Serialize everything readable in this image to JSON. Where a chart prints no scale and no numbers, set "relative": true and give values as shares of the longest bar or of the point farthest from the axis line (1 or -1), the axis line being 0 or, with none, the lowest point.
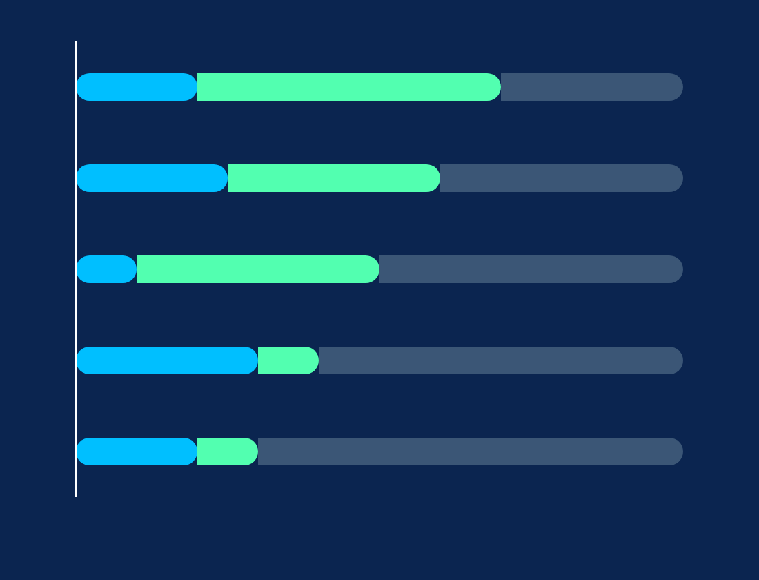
{
  "chart_data": {
    "type": "bar",
    "orientation": "horizontal",
    "stacked": true,
    "relative": true,
    "categories": [
      null,
      null,
      null,
      null,
      null
    ],
    "series": [
      {
        "color": "#00bfff",
        "values": [
          0.2,
          0.25,
          0.1,
          0.3,
          0.2
        ]
      },
      {
        "color": "#52ffb0",
        "values": [
          0.5,
          0.35,
          0.4,
          0.1,
          0.1
        ]
      },
      {
        "color": "#3b5676",
        "values": [
          0.3,
          0.4,
          0.5,
          0.6,
          0.7
        ]
      }
    ]
  }
}
